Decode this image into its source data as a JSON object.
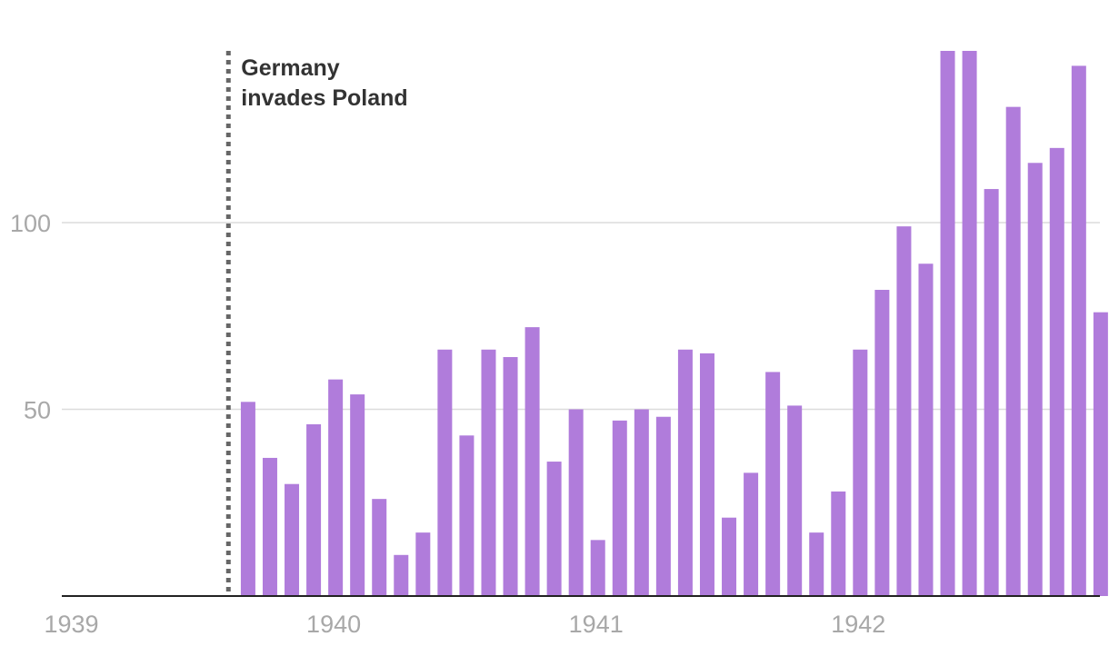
{
  "chart_data": {
    "type": "bar",
    "title": "",
    "xlabel": "",
    "ylabel": "",
    "ylim": [
      0,
      146
    ],
    "yticks": [
      50,
      100
    ],
    "yticks_labels": [
      "50",
      "100"
    ],
    "xticks": [
      {
        "label": "1939",
        "month_index": 0
      },
      {
        "label": "1940",
        "month_index": 12
      },
      {
        "label": "1941",
        "month_index": 24
      },
      {
        "label": "1942",
        "month_index": 36
      }
    ],
    "categories": [
      "1939-09",
      "1939-10",
      "1939-11",
      "1939-12",
      "1940-01",
      "1940-02",
      "1940-03",
      "1940-04",
      "1940-05",
      "1940-06",
      "1940-07",
      "1940-08",
      "1940-09",
      "1940-10",
      "1940-11",
      "1940-12",
      "1941-01",
      "1941-02",
      "1941-03",
      "1941-04",
      "1941-05",
      "1941-06",
      "1941-07",
      "1941-08",
      "1941-09",
      "1941-10",
      "1941-11",
      "1941-12",
      "1942-01",
      "1942-02",
      "1942-03",
      "1942-04",
      "1942-05",
      "1942-06",
      "1942-07",
      "1942-08",
      "1942-09",
      "1942-10",
      "1942-11",
      "1942-12"
    ],
    "first_bar_month_index": 8,
    "values": [
      52,
      37,
      30,
      46,
      58,
      54,
      26,
      11,
      17,
      66,
      43,
      66,
      64,
      72,
      36,
      50,
      15,
      47,
      50,
      48,
      66,
      65,
      21,
      33,
      60,
      51,
      17,
      28,
      66,
      82,
      99,
      89,
      146,
      146,
      109,
      131,
      116,
      120,
      142,
      76
    ],
    "bar_color": "#b07cdb",
    "annotation": {
      "lines": [
        "Germany",
        "invades Poland"
      ],
      "month_index": 7.6,
      "line_color": "#666666"
    },
    "grid": true
  }
}
